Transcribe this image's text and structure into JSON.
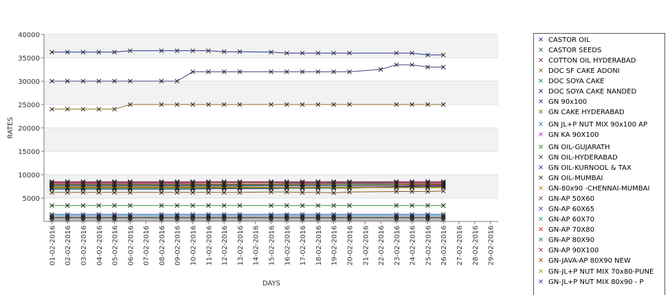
{
  "chart_data": {
    "type": "line",
    "title": "",
    "xlabel": "DAYS",
    "ylabel": "RATES",
    "ylim": [
      0,
      40000
    ],
    "yticks": [
      5000,
      10000,
      15000,
      20000,
      25000,
      30000,
      35000,
      40000
    ],
    "grid": "alternating horizontal bands",
    "legend_position": "right",
    "categories": [
      "01-02-2016",
      "02-02-2016",
      "03-02-2016",
      "04-02-2016",
      "05-02-2016",
      "06-02-2016",
      "07-02-2016",
      "08-02-2016",
      "09-02-2016",
      "10-02-2016",
      "11-02-2016",
      "12-02-2016",
      "13-02-2016",
      "14-02-2016",
      "15-02-2016",
      "16-02-2016",
      "17-02-2016",
      "18-02-2016",
      "19-02-2016",
      "20-02-2016",
      "21-02-2016",
      "22-02-2016",
      "23-02-2016",
      "24-02-2016",
      "25-02-2016",
      "26-02-2016",
      "27-02-2016",
      "28-02-2016",
      "29-02-2016"
    ],
    "series": [
      {
        "name": "CASTOR OIL",
        "color": "#1f2f8f",
        "values": [
          36200,
          36200,
          36200,
          36200,
          36200,
          36500,
          null,
          36500,
          36500,
          36500,
          36500,
          36300,
          36300,
          null,
          36200,
          36000,
          36000,
          36000,
          36000,
          36000,
          null,
          null,
          36000,
          36000,
          35600,
          35600,
          null,
          null,
          null
        ]
      },
      {
        "name": "CASTOR SEEDS",
        "color": "#2e6b3a",
        "values": [
          7100,
          7100,
          7100,
          7100,
          7100,
          7100,
          null,
          7100,
          7100,
          7100,
          7100,
          7100,
          7100,
          null,
          7100,
          7100,
          7100,
          7100,
          7100,
          7100,
          null,
          null,
          7400,
          7400,
          7400,
          7500,
          null,
          null,
          null
        ]
      },
      {
        "name": "COTTON OIL HYDERABAD",
        "color": "#6b1f1f",
        "values": [
          7800,
          7800,
          7800,
          7800,
          7800,
          7800,
          null,
          7800,
          7800,
          7800,
          7800,
          7800,
          7800,
          null,
          7800,
          7800,
          7800,
          7800,
          7800,
          7800,
          null,
          null,
          7800,
          7800,
          7800,
          7800,
          null,
          null,
          null
        ]
      },
      {
        "name": "DOC SF CAKE ADONI",
        "color": "#8a5a2b",
        "values": [
          6200,
          6200,
          6200,
          6200,
          6200,
          6200,
          null,
          6200,
          6200,
          6200,
          6200,
          6200,
          6200,
          null,
          6300,
          6300,
          6200,
          6200,
          6100,
          6300,
          null,
          null,
          6400,
          6400,
          6400,
          6500,
          null,
          null,
          null
        ]
      },
      {
        "name": "DOC SOYA CAKE",
        "color": "#1b8a8a",
        "values": [
          1200,
          1200,
          1200,
          1200,
          1200,
          1200,
          null,
          1200,
          1200,
          1200,
          1200,
          1200,
          1200,
          null,
          1200,
          1200,
          1200,
          1200,
          1200,
          1200,
          null,
          null,
          1200,
          1200,
          1200,
          1200,
          null,
          null,
          null
        ]
      },
      {
        "name": "DOC SOYA CAKE NANDED",
        "color": "#202060",
        "values": [
          700,
          700,
          700,
          700,
          700,
          700,
          null,
          700,
          700,
          700,
          700,
          700,
          700,
          null,
          700,
          700,
          700,
          700,
          700,
          700,
          null,
          null,
          700,
          700,
          700,
          700,
          null,
          null,
          null
        ]
      },
      {
        "name": "GN 90x100",
        "color": "#1a3a8c",
        "values": [
          6900,
          6900,
          6900,
          6900,
          6900,
          6900,
          null,
          6900,
          6900,
          6900,
          7000,
          7000,
          7000,
          null,
          7000,
          7100,
          7100,
          7100,
          7200,
          7300,
          null,
          null,
          7400,
          7500,
          7600,
          7600,
          null,
          null,
          null
        ]
      },
      {
        "name": "GN CAKE HYDERABAD",
        "color": "#8a6a1a",
        "values": [
          24000,
          24000,
          24000,
          24000,
          24000,
          25000,
          null,
          25000,
          25000,
          25000,
          25000,
          25000,
          25000,
          null,
          25000,
          25000,
          25000,
          25000,
          25000,
          25000,
          null,
          null,
          25000,
          25000,
          25000,
          25000,
          null,
          null,
          null
        ]
      },
      {
        "name": "GN JL+P NUT MIX 90x100 AP",
        "color": "#3a7aa0",
        "values": [
          8000,
          8000,
          8000,
          8000,
          8000,
          8000,
          null,
          8000,
          8000,
          8000,
          8000,
          8000,
          8000,
          null,
          8000,
          8100,
          8100,
          8100,
          8100,
          8100,
          null,
          null,
          8200,
          8200,
          8200,
          8200,
          null,
          null,
          null
        ]
      },
      {
        "name": "GN KA 90X100",
        "color": "#c040c0",
        "values": [
          8100,
          8100,
          8100,
          8200,
          8200,
          8200,
          null,
          8200,
          8200,
          8200,
          8300,
          8300,
          8300,
          null,
          8300,
          8300,
          8300,
          8300,
          8300,
          8300,
          null,
          null,
          8300,
          8300,
          8300,
          8300,
          null,
          null,
          null
        ]
      },
      {
        "name": "GN OIL-GUJARATH",
        "color": "#2a8a2a",
        "values": [
          3400,
          3400,
          3400,
          3400,
          3400,
          3400,
          null,
          3400,
          3400,
          3400,
          3400,
          3400,
          3400,
          null,
          3400,
          3400,
          3400,
          3400,
          3400,
          3400,
          null,
          null,
          3400,
          3400,
          3400,
          3400,
          null,
          null,
          null
        ]
      },
      {
        "name": "GN OIL-HYDERABAD",
        "color": "#404040",
        "values": [
          300,
          300,
          300,
          300,
          300,
          300,
          null,
          300,
          300,
          300,
          300,
          300,
          300,
          null,
          300,
          300,
          300,
          300,
          300,
          300,
          null,
          null,
          300,
          300,
          300,
          300,
          null,
          null,
          null
        ]
      },
      {
        "name": "GN OIL-KURNOOL & TAX",
        "color": "#1f3fbf",
        "values": [
          1500,
          1500,
          1500,
          1500,
          1500,
          1500,
          null,
          1500,
          1500,
          1500,
          1500,
          1500,
          1500,
          null,
          1500,
          1500,
          1500,
          1500,
          1500,
          1500,
          null,
          null,
          1500,
          1500,
          1500,
          1500,
          null,
          null,
          null
        ]
      },
      {
        "name": "GN OIL-MUMBAI",
        "color": "#3a3a10",
        "values": [
          900,
          900,
          900,
          900,
          900,
          900,
          null,
          900,
          900,
          900,
          900,
          900,
          900,
          null,
          900,
          900,
          900,
          900,
          900,
          900,
          null,
          null,
          900,
          900,
          900,
          900,
          null,
          null,
          null
        ]
      },
      {
        "name": "GN-80x90 -CHENNAI-MUMBAI",
        "color": "#b08a10",
        "values": [
          7500,
          7500,
          7500,
          7500,
          7500,
          7500,
          null,
          7500,
          7500,
          7500,
          7500,
          7500,
          7500,
          null,
          7600,
          7600,
          7600,
          7600,
          7700,
          7700,
          null,
          null,
          7800,
          7900,
          7900,
          8000,
          null,
          null,
          null
        ]
      },
      {
        "name": "GN-AP 50X60",
        "color": "#7a4a2a",
        "values": [
          7300,
          7300,
          7300,
          7300,
          7300,
          7300,
          null,
          7300,
          7300,
          7300,
          7300,
          7300,
          7300,
          null,
          7300,
          7300,
          7300,
          7300,
          7300,
          7300,
          null,
          null,
          7300,
          7300,
          7300,
          7300,
          null,
          null,
          null
        ]
      },
      {
        "name": "GN-AP 60X65",
        "color": "#6a3ab0",
        "values": [
          7600,
          7600,
          7600,
          7600,
          7600,
          7600,
          null,
          7600,
          7600,
          7600,
          7600,
          7600,
          7600,
          null,
          7600,
          7600,
          7600,
          7600,
          7600,
          7600,
          null,
          null,
          7600,
          7600,
          7600,
          7600,
          null,
          null,
          null
        ]
      },
      {
        "name": "GN-AP 60X70",
        "color": "#1aa060",
        "values": [
          7700,
          7700,
          7700,
          7700,
          7700,
          7700,
          null,
          7700,
          7700,
          7700,
          7700,
          7700,
          7700,
          null,
          7700,
          7700,
          7700,
          7700,
          7800,
          7800,
          null,
          null,
          7900,
          8000,
          8000,
          8000,
          null,
          null,
          null
        ]
      },
      {
        "name": "GN-AP 70X80",
        "color": "#d02020",
        "values": [
          8300,
          8300,
          8300,
          8300,
          8300,
          8300,
          null,
          8300,
          8300,
          8300,
          8300,
          8300,
          8300,
          null,
          8300,
          8300,
          8300,
          8300,
          8300,
          8300,
          null,
          null,
          8300,
          8300,
          8300,
          8300,
          null,
          null,
          null
        ]
      },
      {
        "name": "GN-AP 80X90",
        "color": "#2a7a6a",
        "values": [
          8400,
          8400,
          8400,
          8400,
          8400,
          8400,
          null,
          8400,
          8400,
          8400,
          8400,
          8400,
          8400,
          null,
          8400,
          8400,
          8400,
          8400,
          8400,
          8400,
          null,
          null,
          8400,
          8500,
          8500,
          8500,
          null,
          null,
          null
        ]
      },
      {
        "name": "GN-AP 90X100",
        "color": "#a02a6a",
        "values": [
          8500,
          8500,
          8500,
          8500,
          8500,
          8500,
          null,
          8500,
          8500,
          8500,
          8500,
          8500,
          8500,
          null,
          8500,
          8500,
          8500,
          8500,
          8500,
          8500,
          null,
          null,
          8500,
          8500,
          8500,
          8500,
          null,
          null,
          null
        ]
      },
      {
        "name": "GN-JAVA-AP 80X90 NEW",
        "color": "#a05010",
        "values": [
          8000,
          8000,
          8000,
          8000,
          8000,
          8000,
          null,
          8000,
          8000,
          8000,
          8000,
          8000,
          8000,
          null,
          8000,
          8000,
          8000,
          8000,
          8000,
          8000,
          null,
          null,
          8000,
          8000,
          8000,
          8000,
          null,
          null,
          null
        ]
      },
      {
        "name": "GN-JL+P NUT MIX 70x80-PUNE",
        "color": "#b0a000",
        "values": [
          7200,
          7200,
          7200,
          7200,
          7200,
          7200,
          null,
          7200,
          7200,
          7200,
          7200,
          7200,
          7200,
          null,
          7200,
          7200,
          7200,
          7200,
          7200,
          7200,
          null,
          null,
          7200,
          7200,
          7200,
          7200,
          null,
          null,
          null
        ]
      },
      {
        "name": "GN-JL+P NUT MIX 80x90 - P",
        "color": "#404080",
        "values": [
          30000,
          30000,
          30000,
          30000,
          30000,
          30000,
          null,
          30000,
          30000,
          32000,
          32000,
          32000,
          32000,
          null,
          32000,
          32000,
          32000,
          32000,
          32000,
          32000,
          null,
          32500,
          33500,
          33500,
          33000,
          33000,
          null,
          null,
          null
        ]
      }
    ]
  }
}
